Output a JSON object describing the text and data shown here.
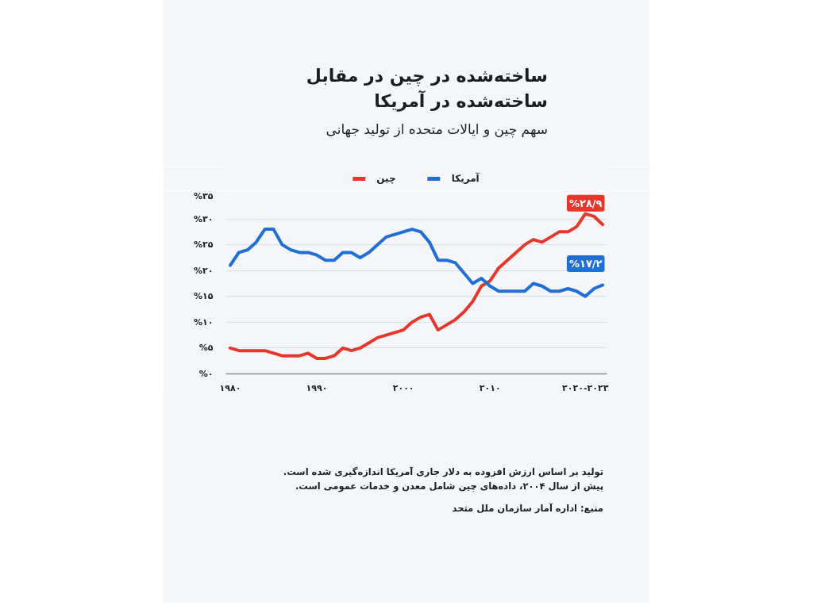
{
  "chart_data": {
    "type": "line",
    "title": "ساخته‌شده در چین در مقابل\nساخته‌شده در آمریکا",
    "subtitle": "سهم چین و ایالات متحده از تولید جهانی",
    "x": [
      1980,
      1981,
      1982,
      1983,
      1984,
      1985,
      1986,
      1987,
      1988,
      1989,
      1990,
      1991,
      1992,
      1993,
      1994,
      1995,
      1996,
      1997,
      1998,
      1999,
      2000,
      2001,
      2002,
      2003,
      2004,
      2005,
      2006,
      2007,
      2008,
      2009,
      2010,
      2011,
      2012,
      2013,
      2014,
      2015,
      2016,
      2017,
      2018,
      2019,
      2020,
      2021,
      2022,
      2023
    ],
    "series": [
      {
        "name": "چین",
        "color": "#e5382b",
        "values": [
          5,
          4.5,
          4.5,
          4.5,
          4.5,
          4,
          3.5,
          3.5,
          3.5,
          4,
          3,
          3,
          3.5,
          5,
          4.5,
          5,
          6,
          7,
          7.5,
          8,
          8.5,
          10,
          11,
          11.5,
          8.5,
          9.5,
          10.5,
          12,
          14,
          17,
          18,
          20.5,
          22,
          23.5,
          25,
          26,
          25.5,
          26.5,
          27.5,
          27.5,
          28.5,
          31,
          30.5,
          28.9
        ]
      },
      {
        "name": "آمریکا",
        "color": "#1f6fd6",
        "values": [
          21,
          23.5,
          24,
          25.5,
          28,
          28,
          25,
          24,
          23.5,
          23.5,
          23,
          22,
          22,
          23.5,
          23.5,
          22.5,
          23.5,
          25,
          26.5,
          27,
          27.5,
          28,
          27.5,
          25.5,
          22,
          22,
          21.5,
          19.5,
          17.5,
          18.5,
          17,
          16,
          16,
          16,
          16,
          17.5,
          17,
          16,
          16,
          16.5,
          16,
          15,
          16.5,
          17.2
        ]
      }
    ],
    "xlim": [
      1979.5,
      2023.5
    ],
    "xticks": [
      {
        "value": 1980,
        "label": "۱۹۸۰"
      },
      {
        "value": 1990,
        "label": "۱۹۹۰"
      },
      {
        "value": 2000,
        "label": "۲۰۰۰"
      },
      {
        "value": 2010,
        "label": "۲۰۱۰"
      },
      {
        "value": 2021,
        "label": "۲۰۲۰-۲۰۲۳"
      }
    ],
    "ylim": [
      0,
      35
    ],
    "yticks": [
      {
        "value": 0,
        "label": "%۰"
      },
      {
        "value": 5,
        "label": "%۵"
      },
      {
        "value": 10,
        "label": "%۱۰"
      },
      {
        "value": 15,
        "label": "%۱۵"
      },
      {
        "value": 20,
        "label": "%۲۰"
      },
      {
        "value": 25,
        "label": "%۲۵"
      },
      {
        "value": 30,
        "label": "%۳۰"
      },
      {
        "value": 35,
        "label": "%۳۵"
      }
    ],
    "grid": "y",
    "legend": "top",
    "line_style": "solid",
    "annotations": [
      {
        "text": "%۲۸/۹",
        "x": 2023,
        "y": 28.9
      },
      {
        "text": "%۱۷/۲",
        "x": 2023,
        "y": 17.2
      },
      "تولید بر اساس ارزش افزوده به دلار جاری آمریکا اندازه‌گیری شده است.",
      "پیش از سال ۲۰۰۴، داده‌های چین شامل معدن و خدمات عمومی است.",
      "منبع: اداره آمار سازمان ملل متحد"
    ]
  }
}
